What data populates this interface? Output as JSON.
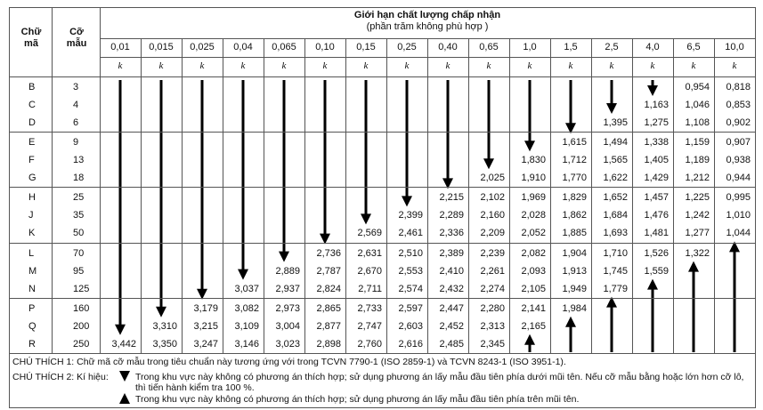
{
  "header": {
    "code_label": "Chữ mã",
    "size_label": "Cỡ mẫu",
    "title": "Giới hạn chất lượng chấp nhận",
    "subtitle": "(phần trăm không phù hợp )",
    "aql": [
      "0,01",
      "0,015",
      "0,025",
      "0,04",
      "0,065",
      "0,10",
      "0,15",
      "0,25",
      "0,40",
      "0,65",
      "1,0",
      "1,5",
      "2,5",
      "4,0",
      "6,5",
      "10,0"
    ],
    "k_label": "k"
  },
  "table": {
    "rows": [
      {
        "code": "B",
        "size": "3",
        "values": [
          null,
          null,
          null,
          null,
          null,
          null,
          null,
          null,
          null,
          null,
          null,
          null,
          null,
          null,
          "0,954",
          "0,818"
        ]
      },
      {
        "code": "C",
        "size": "4",
        "values": [
          null,
          null,
          null,
          null,
          null,
          null,
          null,
          null,
          null,
          null,
          null,
          null,
          null,
          "1,163",
          "1,046",
          "0,853"
        ]
      },
      {
        "code": "D",
        "size": "6",
        "values": [
          null,
          null,
          null,
          null,
          null,
          null,
          null,
          null,
          null,
          null,
          null,
          null,
          "1,395",
          "1,275",
          "1,108",
          "0,902"
        ]
      },
      {
        "code": "E",
        "size": "9",
        "values": [
          null,
          null,
          null,
          null,
          null,
          null,
          null,
          null,
          null,
          null,
          null,
          "1,615",
          "1,494",
          "1,338",
          "1,159",
          "0,907"
        ]
      },
      {
        "code": "F",
        "size": "13",
        "values": [
          null,
          null,
          null,
          null,
          null,
          null,
          null,
          null,
          null,
          null,
          "1,830",
          "1,712",
          "1,565",
          "1,405",
          "1,189",
          "0,938"
        ]
      },
      {
        "code": "G",
        "size": "18",
        "values": [
          null,
          null,
          null,
          null,
          null,
          null,
          null,
          null,
          null,
          "2,025",
          "1,910",
          "1,770",
          "1,622",
          "1,429",
          "1,212",
          "0,944"
        ]
      },
      {
        "code": "H",
        "size": "25",
        "values": [
          null,
          null,
          null,
          null,
          null,
          null,
          null,
          null,
          "2,215",
          "2,102",
          "1,969",
          "1,829",
          "1,652",
          "1,457",
          "1,225",
          "0,995"
        ]
      },
      {
        "code": "J",
        "size": "35",
        "values": [
          null,
          null,
          null,
          null,
          null,
          null,
          null,
          "2,399",
          "2,289",
          "2,160",
          "2,028",
          "1,862",
          "1,684",
          "1,476",
          "1,242",
          "1,010"
        ]
      },
      {
        "code": "K",
        "size": "50",
        "values": [
          null,
          null,
          null,
          null,
          null,
          null,
          "2,569",
          "2,461",
          "2,336",
          "2,209",
          "2,052",
          "1,885",
          "1,693",
          "1,481",
          "1,277",
          "1,044"
        ]
      },
      {
        "code": "L",
        "size": "70",
        "values": [
          null,
          null,
          null,
          null,
          null,
          "2,736",
          "2,631",
          "2,510",
          "2,389",
          "2,239",
          "2,082",
          "1,904",
          "1,710",
          "1,526",
          "1,322",
          null
        ]
      },
      {
        "code": "M",
        "size": "95",
        "values": [
          null,
          null,
          null,
          null,
          "2,889",
          "2,787",
          "2,670",
          "2,553",
          "2,410",
          "2,261",
          "2,093",
          "1,913",
          "1,745",
          "1,559",
          null,
          null
        ]
      },
      {
        "code": "N",
        "size": "125",
        "values": [
          null,
          null,
          null,
          "3,037",
          "2,937",
          "2,824",
          "2,711",
          "2,574",
          "2,432",
          "2,274",
          "2,105",
          "1,949",
          "1,779",
          null,
          null,
          null
        ]
      },
      {
        "code": "P",
        "size": "160",
        "values": [
          null,
          null,
          "3,179",
          "3,082",
          "2,973",
          "2,865",
          "2,733",
          "2,597",
          "2,447",
          "2,280",
          "2,141",
          "1,984",
          null,
          null,
          null,
          null
        ]
      },
      {
        "code": "Q",
        "size": "200",
        "values": [
          null,
          "3,310",
          "3,215",
          "3,109",
          "3,004",
          "2,877",
          "2,747",
          "2,603",
          "2,452",
          "2,313",
          "2,165",
          null,
          null,
          null,
          null,
          null
        ]
      },
      {
        "code": "R",
        "size": "250",
        "values": [
          "3,442",
          "3,350",
          "3,247",
          "3,146",
          "3,023",
          "2,898",
          "2,760",
          "2,616",
          "2,485",
          "2,345",
          null,
          null,
          null,
          null,
          null,
          null
        ]
      }
    ]
  },
  "notes": {
    "note1": "CHÚ THÍCH 1: Chữ mã cỡ mẫu trong tiêu chuẩn này tương ứng với trong TCVN 7790-1 (ISO 2859-1) và TCVN  8243-1 (ISO 3951-1).",
    "note2_label": "CHÚ THÍCH 2: Kí hiệu:",
    "down_text": "Trong khu vực này không có phương án thích hợp; sử dụng phương án lấy mẫu đầu tiên phía dưới mũi tên. Nếu cỡ mẫu bằng hoặc lớn hơn cỡ lô, thì tiến hành kiểm tra 100 %.",
    "up_text": "Trong khu vực này không có phương án thích hợp; sử dụng phương án lấy mẫu đầu tiên phía trên mũi tên."
  }
}
